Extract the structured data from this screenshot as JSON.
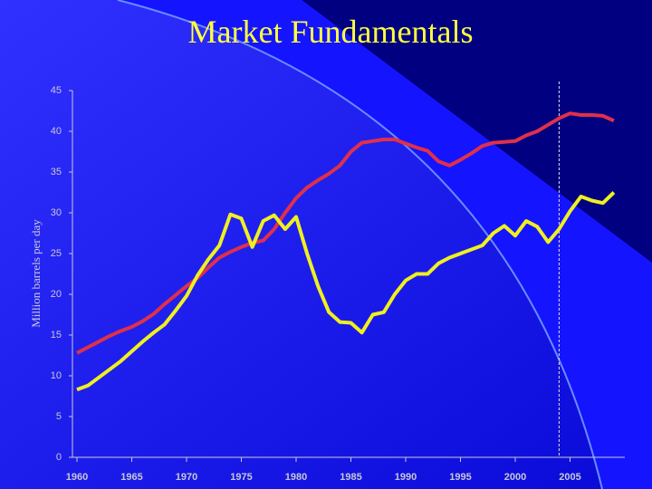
{
  "chart_data": {
    "type": "line",
    "title": "Market Fundamentals",
    "y_label": "Million barrels per day",
    "x": [
      1960,
      1961,
      1962,
      1963,
      1964,
      1965,
      1966,
      1967,
      1968,
      1969,
      1970,
      1971,
      1972,
      1973,
      1974,
      1975,
      1976,
      1977,
      1978,
      1979,
      1980,
      1981,
      1982,
      1983,
      1984,
      1985,
      1986,
      1987,
      1988,
      1989,
      1990,
      1991,
      1992,
      1993,
      1994,
      1995,
      1996,
      1997,
      1998,
      1999,
      2000,
      2001,
      2002,
      2003,
      2004,
      2005,
      2006,
      2007,
      2008,
      2009
    ],
    "series": [
      {
        "color": "#e0304a",
        "values": [
          12.8,
          13.5,
          14.2,
          14.9,
          15.5,
          16.0,
          16.7,
          17.6,
          18.8,
          19.9,
          21.0,
          22.0,
          23.3,
          24.5,
          25.2,
          25.8,
          26.3,
          26.6,
          28.0,
          30.0,
          31.8,
          33.1,
          34.0,
          34.8,
          35.8,
          37.5,
          38.6,
          38.8,
          39.0,
          39.0,
          38.5,
          38.0,
          37.6,
          36.3,
          35.8,
          36.5,
          37.3,
          38.2,
          38.6,
          38.7,
          38.8,
          39.5,
          40.0,
          40.8,
          41.6,
          42.2,
          42.0,
          42.0,
          41.9,
          41.3
        ]
      },
      {
        "color": "#f0f020",
        "values": [
          8.3,
          8.8,
          9.8,
          10.8,
          11.8,
          13.0,
          14.2,
          15.3,
          16.3,
          18.0,
          19.8,
          22.3,
          24.3,
          26.0,
          29.8,
          29.3,
          25.8,
          29.0,
          29.7,
          28.0,
          29.5,
          25.0,
          21.0,
          17.8,
          16.6,
          16.5,
          15.3,
          17.5,
          17.8,
          20.0,
          21.7,
          22.5,
          22.5,
          23.8,
          24.5,
          25.0,
          25.5,
          26.0,
          27.5,
          28.4,
          27.2,
          29.0,
          28.3,
          26.4,
          28.0,
          30.2,
          32.0,
          31.5,
          31.2,
          32.5
        ]
      }
    ],
    "vline": 2004,
    "xlim": [
      1960,
      2010
    ],
    "xticks": [
      1960,
      1965,
      1970,
      1975,
      1980,
      1985,
      1990,
      1995,
      2000,
      2005
    ],
    "ylim": [
      0,
      45
    ],
    "yticks": [
      0,
      5,
      10,
      15,
      20,
      25,
      30,
      35,
      40,
      45
    ]
  }
}
